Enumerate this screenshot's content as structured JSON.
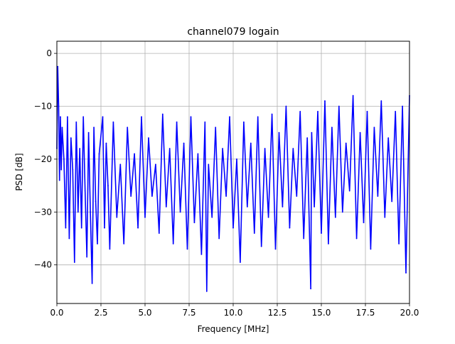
{
  "chart_data": {
    "type": "line",
    "title": "channel079 logain",
    "xlabel": "Frequency [MHz]",
    "ylabel": "PSD [dB]",
    "xlim": [
      0.0,
      20.0
    ],
    "ylim": [
      -47.3,
      2.3
    ],
    "xticks": [
      0.0,
      2.5,
      5.0,
      7.5,
      10.0,
      12.5,
      15.0,
      17.5,
      20.0
    ],
    "xtick_labels": [
      "0.0",
      "2.5",
      "5.0",
      "7.5",
      "10.0",
      "12.5",
      "15.0",
      "17.5",
      "20.0"
    ],
    "yticks": [
      0,
      -10,
      -20,
      -30,
      -40
    ],
    "ytick_labels": [
      "0",
      "−10",
      "−20",
      "−30",
      "−40"
    ],
    "grid": true,
    "legend": "none",
    "series": [
      {
        "color": "#0000ff",
        "x": [
          0.0,
          0.05,
          0.1,
          0.15,
          0.2,
          0.25,
          0.3,
          0.4,
          0.5,
          0.6,
          0.7,
          0.8,
          0.9,
          1.0,
          1.1,
          1.2,
          1.3,
          1.4,
          1.5,
          1.6,
          1.7,
          1.8,
          1.9,
          2.0,
          2.1,
          2.2,
          2.3,
          2.4,
          2.6,
          2.7,
          2.8,
          2.9,
          3.0,
          3.2,
          3.4,
          3.6,
          3.8,
          4.0,
          4.2,
          4.4,
          4.6,
          4.8,
          5.0,
          5.2,
          5.4,
          5.6,
          5.8,
          6.0,
          6.2,
          6.4,
          6.6,
          6.8,
          7.0,
          7.2,
          7.4,
          7.6,
          7.8,
          8.0,
          8.2,
          8.4,
          8.5,
          8.6,
          8.8,
          9.0,
          9.2,
          9.4,
          9.6,
          9.8,
          10.0,
          10.2,
          10.4,
          10.6,
          10.8,
          11.0,
          11.2,
          11.4,
          11.6,
          11.8,
          12.0,
          12.2,
          12.4,
          12.6,
          12.8,
          13.0,
          13.2,
          13.4,
          13.6,
          13.8,
          14.0,
          14.2,
          14.4,
          14.45,
          14.6,
          14.8,
          15.0,
          15.2,
          15.4,
          15.6,
          15.8,
          16.0,
          16.2,
          16.4,
          16.6,
          16.8,
          17.0,
          17.2,
          17.4,
          17.6,
          17.8,
          18.0,
          18.2,
          18.4,
          18.6,
          18.8,
          19.0,
          19.2,
          19.4,
          19.6,
          19.8,
          20.0
        ],
        "y": [
          -18,
          -2.5,
          -10,
          -24,
          -12,
          -22,
          -14,
          -20,
          -33,
          -12,
          -35,
          -16,
          -22,
          -39.5,
          -13,
          -30,
          -18,
          -33,
          -12,
          -26,
          -38.5,
          -15,
          -30,
          -43.5,
          -14,
          -28,
          -36,
          -19,
          -12,
          -33,
          -17,
          -25,
          -37,
          -13,
          -31,
          -21,
          -36,
          -14,
          -27,
          -19,
          -33,
          -12,
          -31,
          -16,
          -27,
          -21,
          -34,
          -11.5,
          -29,
          -18,
          -36,
          -13,
          -30,
          -17,
          -37,
          -12,
          -32,
          -19,
          -38,
          -13,
          -45,
          -21,
          -31,
          -14,
          -35,
          -18,
          -27,
          -12,
          -33,
          -20,
          -39.5,
          -13,
          -29,
          -17,
          -34,
          -12,
          -36.5,
          -18,
          -31,
          -11.5,
          -37,
          -15,
          -29,
          -10,
          -33,
          -18,
          -27,
          -11,
          -35,
          -16,
          -44.5,
          -15,
          -29,
          -11,
          -34,
          -9,
          -36,
          -14,
          -31,
          -10,
          -30,
          -17,
          -26,
          -8,
          -35,
          -15,
          -32,
          -11,
          -37,
          -14,
          -27,
          -9,
          -31,
          -16,
          -28,
          -11,
          -36,
          -10,
          -41.5,
          -8
        ]
      }
    ]
  }
}
